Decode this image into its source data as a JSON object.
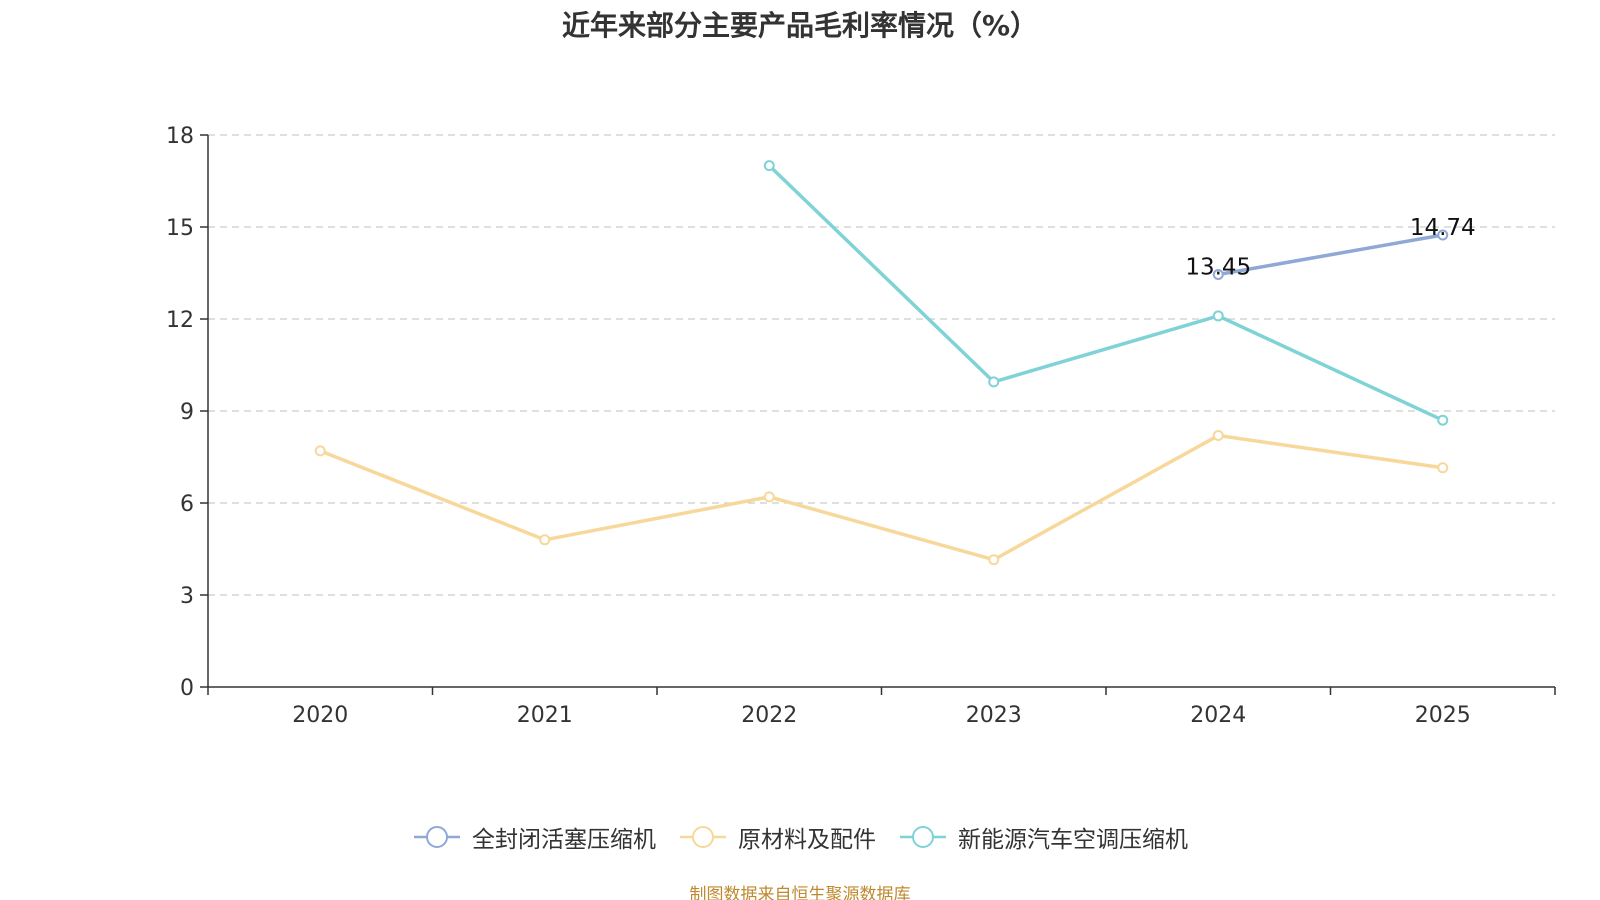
{
  "chart_data": {
    "type": "line",
    "title": "近年来部分主要产品毛利率情况（%）",
    "categories": [
      "2020",
      "2021",
      "2022",
      "2023",
      "2024",
      "2025"
    ],
    "ylim": [
      0,
      18
    ],
    "yticks": [
      "0",
      "3",
      "6",
      "9",
      "12",
      "15",
      "18"
    ],
    "grid": true,
    "legend_position": "bottom",
    "series": [
      {
        "name": "全封闭活塞压缩机",
        "color": "#8fa8d6",
        "values": [
          null,
          null,
          null,
          null,
          13.45,
          14.74
        ],
        "labels": [
          null,
          null,
          null,
          null,
          "13.45",
          "14.74"
        ]
      },
      {
        "name": "原材料及配件",
        "color": "#f8d89a",
        "values": [
          7.7,
          4.8,
          6.2,
          4.15,
          8.2,
          7.15
        ],
        "labels": [
          null,
          null,
          null,
          null,
          null,
          null
        ]
      },
      {
        "name": "新能源汽车空调压缩机",
        "color": "#7fd3d6",
        "values": [
          null,
          null,
          17.0,
          9.95,
          12.1,
          8.7
        ],
        "labels": [
          null,
          null,
          null,
          null,
          null,
          null
        ]
      }
    ]
  },
  "source": "制图数据来自恒生聚源数据库"
}
